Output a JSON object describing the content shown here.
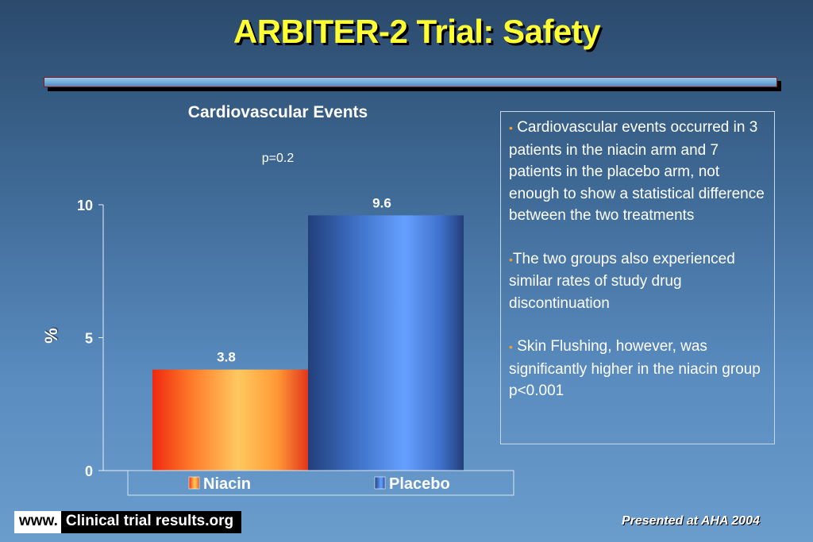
{
  "slide": {
    "title": "ARBITER-2 Trial: Safety",
    "pvalue": "p=0.2",
    "footer_www": "www.",
    "footer_site": "Clinical trial results.org",
    "footer_presented": "Presented at AHA 2004"
  },
  "notes": {
    "items": [
      "Cardiovascular events occurred in 3 patients in the niacin arm and 7 patients in the placebo arm, not enough to show a statistical difference between the two treatments",
      "The two groups also experienced similar rates of study drug discontinuation",
      " Skin Flushing, however, was significantly higher in the niacin group p<0.001"
    ],
    "bullet": "•",
    "bullet_color": "#f0a030"
  },
  "chart_data": {
    "type": "bar",
    "title": "Cardiovascular Events",
    "ylabel": "%",
    "xlabel": "",
    "categories": [
      "Niacin",
      "Placebo"
    ],
    "values": [
      3.8,
      9.6
    ],
    "data_labels": [
      "3.8",
      "9.6"
    ],
    "ylim": [
      0,
      10
    ],
    "yticks": [
      0,
      5,
      10
    ],
    "grid": false,
    "legend_position": "bottom",
    "colors": {
      "Niacin": "#f25022",
      "Placebo": "#3d6fc4"
    }
  }
}
